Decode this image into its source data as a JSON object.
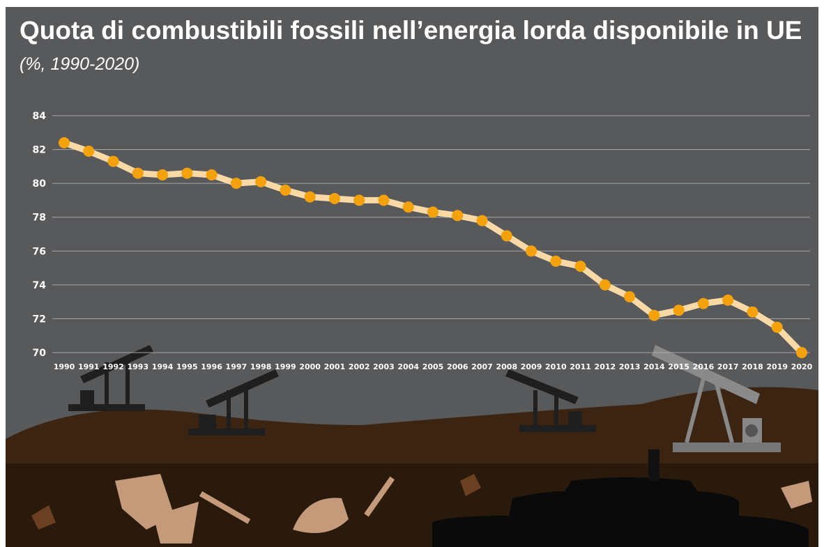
{
  "chart_data": {
    "type": "line",
    "title": "Quota di combustibili fossili nell’energia lorda disponibile in UE",
    "subtitle": "(%, 1990-2020)",
    "categories": [
      "1990",
      "1991",
      "1992",
      "1993",
      "1994",
      "1995",
      "1996",
      "1997",
      "1998",
      "1999",
      "2000",
      "2001",
      "2002",
      "2003",
      "2004",
      "2005",
      "2006",
      "2007",
      "2008",
      "2009",
      "2010",
      "2011",
      "2012",
      "2013",
      "2014",
      "2015",
      "2016",
      "2017",
      "2018",
      "2019",
      "2020"
    ],
    "values": [
      82.4,
      81.9,
      81.3,
      80.6,
      80.5,
      80.6,
      80.5,
      80.0,
      80.1,
      79.6,
      79.2,
      79.1,
      79.0,
      79.0,
      78.6,
      78.3,
      78.1,
      77.8,
      76.9,
      76.0,
      75.4,
      75.1,
      74.0,
      73.3,
      72.2,
      72.5,
      72.9,
      73.1,
      72.4,
      71.5,
      70.0
    ],
    "color": "#f9d9a6",
    "marker_color": "#f4a20c",
    "ylim": [
      70,
      84
    ],
    "yticks": [
      70,
      72,
      74,
      76,
      78,
      80,
      82,
      84
    ],
    "grid": true
  }
}
